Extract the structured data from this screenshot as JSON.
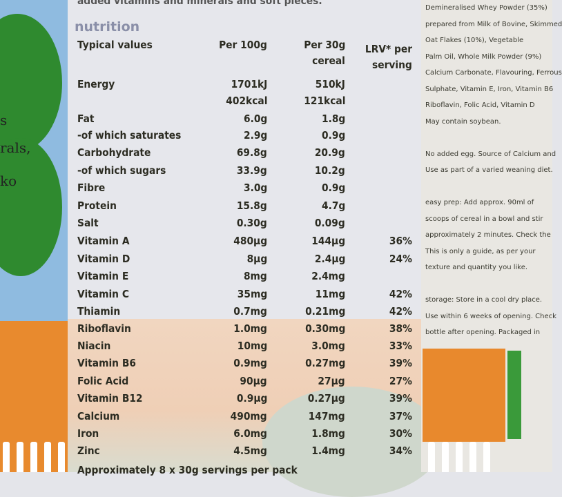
{
  "top_text": "added vitamins and minerals and soft pieces.",
  "left_fragments": [
    "s",
    "rals,",
    "ko"
  ],
  "section_title": "nutrition",
  "headers": {
    "label": "Typical values",
    "per100": "Per 100g",
    "per30_line1": "Per 30g",
    "per30_line2": "cereal",
    "lrv_line1": "LRV* per",
    "lrv_line2": "serving"
  },
  "rows": [
    {
      "name": "Energy",
      "per100": "1701kJ",
      "per30": "510kJ",
      "lrv": ""
    },
    {
      "name": "",
      "per100": "402kcal",
      "per30": "121kcal",
      "lrv": ""
    },
    {
      "name": "Fat",
      "per100": "6.0g",
      "per30": "1.8g",
      "lrv": ""
    },
    {
      "name": "-of which saturates",
      "per100": "2.9g",
      "per30": "0.9g",
      "lrv": ""
    },
    {
      "name": "Carbohydrate",
      "per100": "69.8g",
      "per30": "20.9g",
      "lrv": ""
    },
    {
      "name": "-of which sugars",
      "per100": "33.9g",
      "per30": "10.2g",
      "lrv": ""
    },
    {
      "name": "Fibre",
      "per100": "3.0g",
      "per30": "0.9g",
      "lrv": ""
    },
    {
      "name": "Protein",
      "per100": "15.8g",
      "per30": "4.7g",
      "lrv": ""
    },
    {
      "name": "Salt",
      "per100": "0.30g",
      "per30": "0.09g",
      "lrv": ""
    },
    {
      "name": "Vitamin A",
      "per100": "480µg",
      "per30": "144µg",
      "lrv": "36%"
    },
    {
      "name": "Vitamin D",
      "per100": "8µg",
      "per30": "2.4µg",
      "lrv": "24%"
    },
    {
      "name": "Vitamin E",
      "per100": "8mg",
      "per30": "2.4mg",
      "lrv": ""
    },
    {
      "name": "Vitamin C",
      "per100": "35mg",
      "per30": "11mg",
      "lrv": "42%"
    },
    {
      "name": "Thiamin",
      "per100": "0.7mg",
      "per30": "0.21mg",
      "lrv": "42%"
    },
    {
      "name": "Riboflavin",
      "per100": "1.0mg",
      "per30": "0.30mg",
      "lrv": "38%"
    },
    {
      "name": "Niacin",
      "per100": "10mg",
      "per30": "3.0mg",
      "lrv": "33%"
    },
    {
      "name": "Vitamin B6",
      "per100": "0.9mg",
      "per30": "0.27mg",
      "lrv": "39%"
    },
    {
      "name": "Folic Acid",
      "per100": "90µg",
      "per30": "27µg",
      "lrv": "27%"
    },
    {
      "name": "Vitamin B12",
      "per100": "0.9µg",
      "per30": "0.27µg",
      "lrv": "39%"
    },
    {
      "name": "Calcium",
      "per100": "490mg",
      "per30": "147mg",
      "lrv": "37%"
    },
    {
      "name": "Iron",
      "per100": "6.0mg",
      "per30": "1.8mg",
      "lrv": "30%"
    },
    {
      "name": "Zinc",
      "per100": "4.5mg",
      "per30": "1.4mg",
      "lrv": "34%"
    }
  ],
  "footer": "Approximately 8 x 30g servings per pack",
  "side_lines": [
    "Demineralised Whey Powder (35%)",
    "prepared from Milk of Bovine, Skimmed",
    "Oat Flakes (10%), Vegetable",
    "Palm Oil, Whole Milk Powder (9%)",
    "Calcium Carbonate, Flavouring, Ferrous",
    "Sulphate, Vitamin E, Iron, Vitamin B6",
    "Riboflavin, Folic Acid, Vitamin D",
    "May contain soybean.",
    "",
    "No added egg. Source of Calcium and",
    "Use as part of a varied weaning diet.",
    "",
    "easy prep: Add approx. 90ml of",
    "scoops of cereal in a bowl and stir",
    "approximately 2 minutes. Check the",
    "This is only a guide, as per your",
    "texture and quantity you like.",
    "",
    "storage: Store in a cool dry place.",
    "Use within 6 weeks of opening. Check",
    "bottle after opening. Packaged in"
  ]
}
